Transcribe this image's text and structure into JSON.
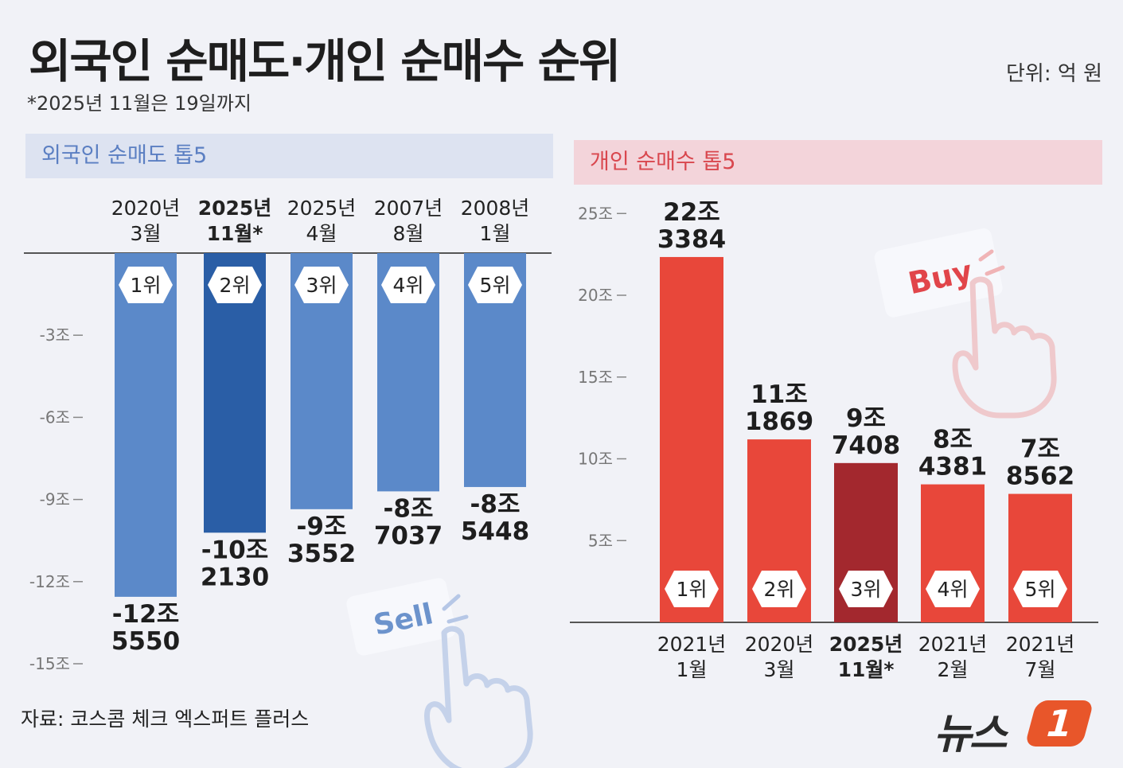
{
  "title": "외국인 순매도·개인 순매수 순위",
  "note": "*2025년 11월은 19일까지",
  "unit": "단위: 억 원",
  "source": "자료: 코스콤 체크 엑스퍼트 플러스",
  "logo": {
    "text": "뉴스",
    "badge": "1"
  },
  "buttons": {
    "sell": "Sell",
    "buy": "Buy"
  },
  "colors": {
    "foreign_bar": "#5b89c9",
    "foreign_highlight": "#2a5ea6",
    "individual_bar": "#e8473a",
    "individual_highlight": "#a3282e"
  },
  "chart_data": [
    {
      "type": "bar",
      "title": "외국인 순매도 톱5",
      "categories": [
        [
          "2020년",
          "3월"
        ],
        [
          "2025년",
          "11월*"
        ],
        [
          "2025년",
          "4월"
        ],
        [
          "2007년",
          "8월"
        ],
        [
          "2008년",
          "1월"
        ]
      ],
      "ranks": [
        "1위",
        "2위",
        "3위",
        "4위",
        "5위"
      ],
      "values": [
        -125550,
        -102130,
        -93552,
        -87037,
        -85448
      ],
      "value_labels": [
        [
          "-12조",
          "5550"
        ],
        [
          "-10조",
          "2130"
        ],
        [
          "-9조",
          "3552"
        ],
        [
          "-8조",
          "7037"
        ],
        [
          "-8조",
          "5448"
        ]
      ],
      "highlight_index": 1,
      "yticks": [
        "-3조",
        "-6조",
        "-9조",
        "-12조",
        "-15조"
      ],
      "ylim": [
        -150000,
        0
      ]
    },
    {
      "type": "bar",
      "title": "개인 순매수 톱5",
      "categories": [
        [
          "2021년",
          "1월"
        ],
        [
          "2020년",
          "3월"
        ],
        [
          "2025년",
          "11월*"
        ],
        [
          "2021년",
          "2월"
        ],
        [
          "2021년",
          "7월"
        ]
      ],
      "ranks": [
        "1위",
        "2위",
        "3위",
        "4위",
        "5위"
      ],
      "values": [
        223384,
        111869,
        97408,
        84381,
        78562
      ],
      "value_labels": [
        [
          "22조",
          "3384"
        ],
        [
          "11조",
          "1869"
        ],
        [
          "9조",
          "7408"
        ],
        [
          "8조",
          "4381"
        ],
        [
          "7조",
          "8562"
        ]
      ],
      "highlight_index": 2,
      "yticks": [
        "25조",
        "20조",
        "15조",
        "10조",
        "5조"
      ],
      "ylim": [
        0,
        250000
      ]
    }
  ]
}
